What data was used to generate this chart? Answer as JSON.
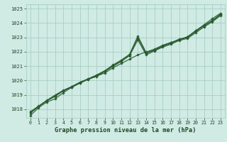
{
  "background_color": "#d0eae4",
  "label_bg_color": "#d0eae4",
  "grid_color": "#a8cfc4",
  "line_color": "#2a5c32",
  "marker_color": "#2a5c32",
  "title": "Graphe pression niveau de la mer (hPa)",
  "title_color": "#1a4a22",
  "xlim": [
    -0.5,
    23.5
  ],
  "ylim": [
    1017.4,
    1025.3
  ],
  "yticks": [
    1018,
    1019,
    1020,
    1021,
    1022,
    1023,
    1024,
    1025
  ],
  "xticks": [
    0,
    1,
    2,
    3,
    4,
    5,
    6,
    7,
    8,
    9,
    10,
    11,
    12,
    13,
    14,
    15,
    16,
    17,
    18,
    19,
    20,
    21,
    22,
    23
  ],
  "series": [
    [
      1017.55,
      1018.1,
      1018.5,
      1018.72,
      1019.15,
      1019.52,
      1019.82,
      1020.08,
      1020.3,
      1020.52,
      1020.88,
      1021.18,
      1021.48,
      1021.78,
      1021.98,
      1022.18,
      1022.45,
      1022.65,
      1022.82,
      1023.05,
      1023.45,
      1023.88,
      1024.3,
      1024.68
    ],
    [
      1017.72,
      1018.18,
      1018.58,
      1018.88,
      1019.28,
      1019.52,
      1019.82,
      1020.08,
      1020.28,
      1020.62,
      1020.98,
      1021.32,
      1021.72,
      1022.82,
      1021.78,
      1022.05,
      1022.32,
      1022.52,
      1022.78,
      1022.92,
      1023.32,
      1023.72,
      1024.08,
      1024.52
    ],
    [
      1017.82,
      1018.22,
      1018.62,
      1018.98,
      1019.32,
      1019.58,
      1019.88,
      1020.12,
      1020.38,
      1020.68,
      1021.08,
      1021.42,
      1021.82,
      1023.1,
      1021.95,
      1022.12,
      1022.42,
      1022.62,
      1022.88,
      1023.02,
      1023.48,
      1023.82,
      1024.18,
      1024.62
    ],
    [
      1017.78,
      1018.2,
      1018.6,
      1018.94,
      1019.28,
      1019.56,
      1019.86,
      1020.1,
      1020.34,
      1020.64,
      1021.04,
      1021.38,
      1021.78,
      1022.95,
      1021.88,
      1022.1,
      1022.38,
      1022.58,
      1022.84,
      1022.98,
      1023.4,
      1023.8,
      1024.14,
      1024.58
    ]
  ]
}
